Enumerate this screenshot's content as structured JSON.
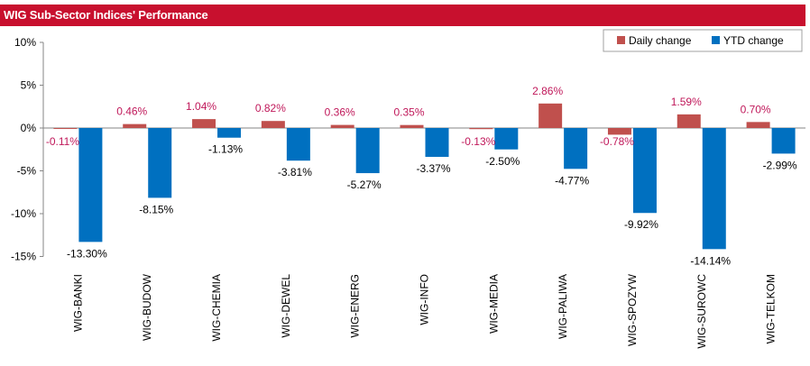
{
  "header": {
    "title": "WIG Sub-Sector Indices' Performance"
  },
  "colors": {
    "header_bg": "#c8102e",
    "daily": "#c0504d",
    "ytd": "#0070c0",
    "daily_label": "#c0185a",
    "ytd_label": "#000000"
  },
  "chart_data": {
    "type": "bar",
    "title": "WIG Sub-Sector Indices' Performance",
    "categories": [
      "WIG-BANKI",
      "WIG-BUDOW",
      "WIG-CHEMIA",
      "WIG-DEWEL",
      "WIG-ENERG",
      "WIG-INFO",
      "WIG-MEDIA",
      "WIG-PALIWA",
      "WIG-SPOZYW",
      "WIG-SUROWC",
      "WIG-TELKOM"
    ],
    "series": [
      {
        "name": "Daily change",
        "values": [
          -0.11,
          0.46,
          1.04,
          0.82,
          0.36,
          0.35,
          -0.13,
          2.86,
          -0.78,
          1.59,
          0.7
        ],
        "labels": [
          "-0.11%",
          "0.46%",
          "1.04%",
          "0.82%",
          "0.36%",
          "0.35%",
          "-0.13%",
          "2.86%",
          "-0.78%",
          "1.59%",
          "0.70%"
        ]
      },
      {
        "name": "YTD change",
        "values": [
          -13.3,
          -8.15,
          -1.13,
          -3.81,
          -5.27,
          -3.37,
          -2.5,
          -4.77,
          -9.92,
          -14.14,
          -2.99
        ],
        "labels": [
          "-13.30%",
          "-8.15%",
          "-1.13%",
          "-3.81%",
          "-5.27%",
          "-3.37%",
          "-2.50%",
          "-4.77%",
          "-9.92%",
          "-14.14%",
          "-2.99%"
        ]
      }
    ],
    "yticks": [
      10,
      5,
      0,
      -5,
      -10,
      -15
    ],
    "ytick_labels": [
      "10%",
      "5%",
      "0%",
      "-5%",
      "-10%",
      "-15%"
    ],
    "ylim": [
      -15,
      10
    ],
    "grid": false,
    "legend": "top-right"
  }
}
